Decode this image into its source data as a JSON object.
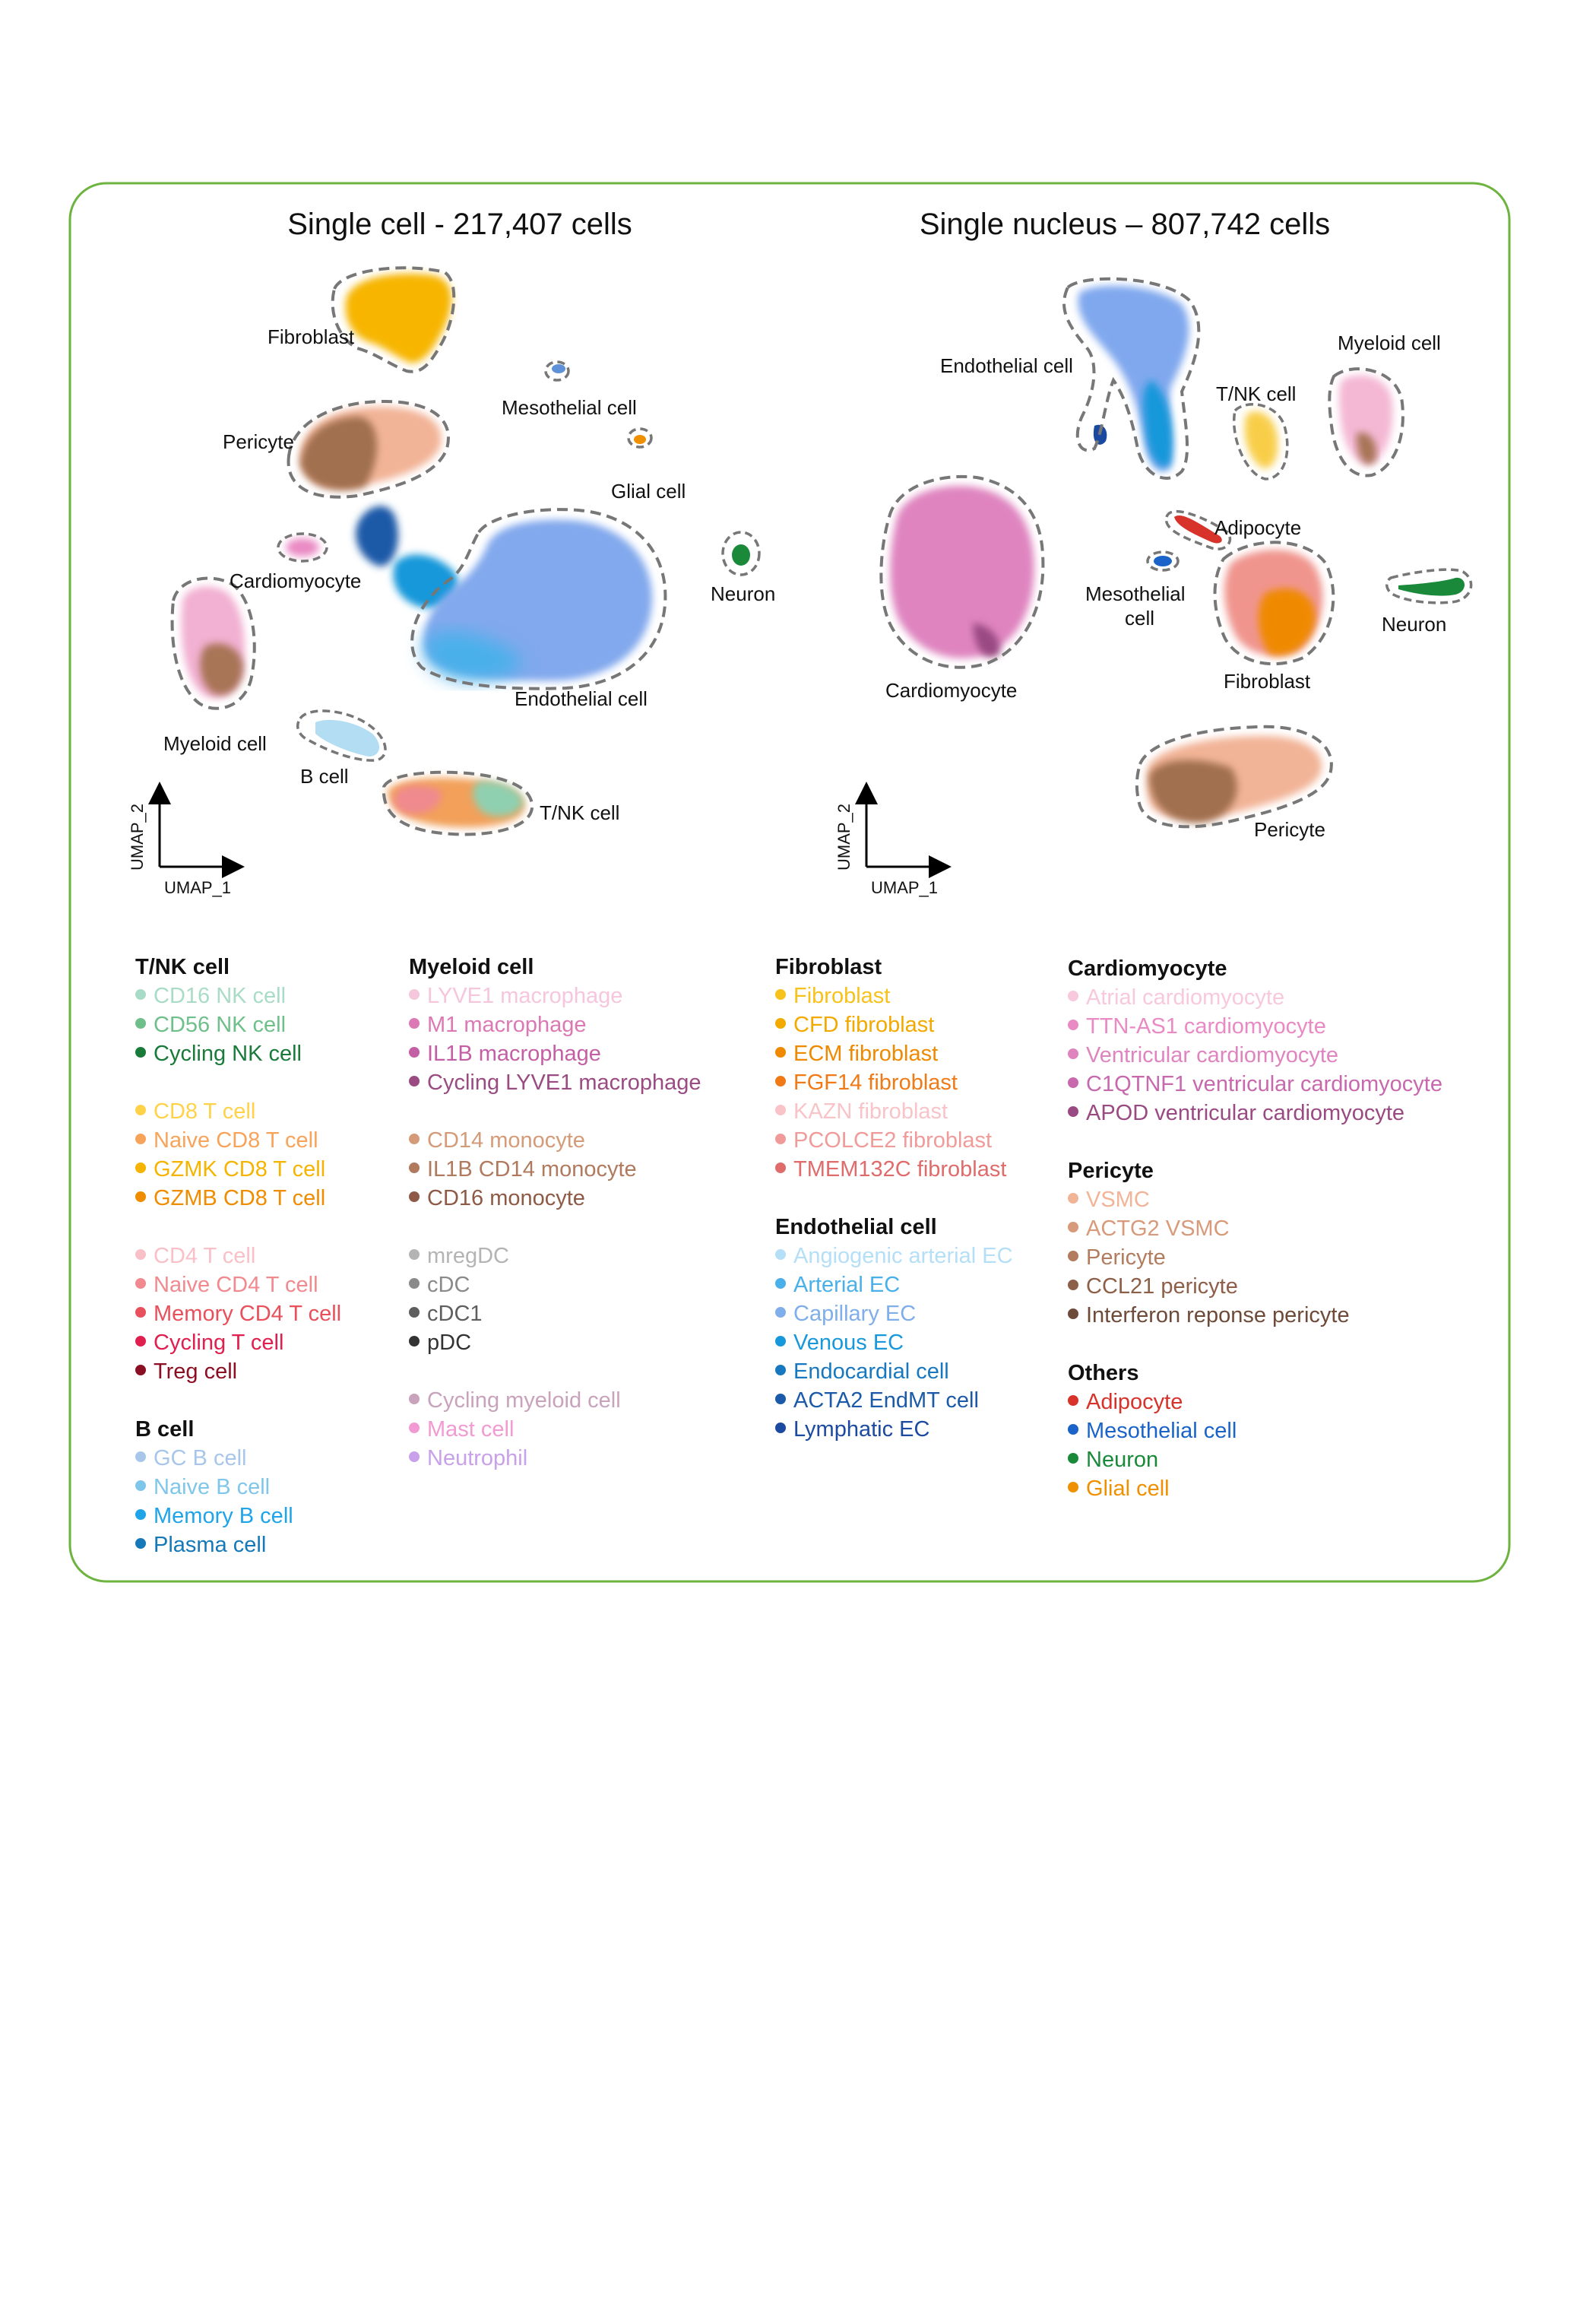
{
  "palette": {
    "frame": "#6db33f",
    "outline": "#777777",
    "text": "#111111"
  },
  "panels": [
    {
      "id": "single-cell",
      "title": "Single cell - 217,407 cells",
      "axes": {
        "x": "UMAP_1",
        "y": "UMAP_2"
      },
      "labels": [
        "Fibroblast",
        "Mesothelial cell",
        "Glial cell",
        "Pericyte",
        "Neuron",
        "Cardiomyocyte",
        "Endothelial cell",
        "Myeloid cell",
        "B cell",
        "T/NK cell"
      ]
    },
    {
      "id": "single-nucleus",
      "title": "Single nucleus – 807,742 cells",
      "axes": {
        "x": "UMAP_1",
        "y": "UMAP_2"
      },
      "labels": [
        "Endothelial cell",
        "Myeloid cell",
        "T/NK cell",
        "Adipocyte",
        "Mesothelial",
        "cell",
        "Neuron",
        "Cardiomyocyte",
        "Fibroblast",
        "Pericyte"
      ]
    }
  ],
  "legend": {
    "col1": [
      {
        "title": "T/NK cell",
        "subgroups": [
          [
            {
              "label": "CD16 NK cell",
              "color": "#a9dcc6"
            },
            {
              "label": "CD56 NK cell",
              "color": "#6fbf8a"
            },
            {
              "label": "Cycling NK cell",
              "color": "#1a7a3a"
            }
          ],
          [
            {
              "label": "CD8 T cell",
              "color": "#ffd24a"
            },
            {
              "label": "Naive CD8 T cell",
              "color": "#f7a45a"
            },
            {
              "label": "GZMK CD8 T cell",
              "color": "#f5b400"
            },
            {
              "label": "GZMB CD8 T cell",
              "color": "#ef8c00"
            }
          ],
          [
            {
              "label": "CD4 T cell",
              "color": "#f9c0c8"
            },
            {
              "label": "Naive CD4 T cell",
              "color": "#f08a8f"
            },
            {
              "label": "Memory CD4 T cell",
              "color": "#e8505b"
            },
            {
              "label": "Cycling T cell",
              "color": "#e01f4f"
            },
            {
              "label": "Treg cell",
              "color": "#8b0f22"
            }
          ]
        ]
      },
      {
        "title": "B cell",
        "subgroups": [
          [
            {
              "label": "GC B cell",
              "color": "#a8c6ea"
            },
            {
              "label": "Naive B cell",
              "color": "#7fc7ea"
            },
            {
              "label": "Memory B cell",
              "color": "#20a4e8"
            },
            {
              "label": "Plasma cell",
              "color": "#1578b8"
            }
          ]
        ]
      }
    ],
    "col2": [
      {
        "title": "Myeloid cell",
        "subgroups": [
          [
            {
              "label": "LYVE1 macrophage",
              "color": "#f6c6dc"
            },
            {
              "label": "M1 macrophage",
              "color": "#dc79b4"
            },
            {
              "label": "IL1B macrophage",
              "color": "#c45fa6"
            },
            {
              "label": "Cycling LYVE1 macrophage",
              "color": "#994b82"
            }
          ],
          [
            {
              "label": "CD14 monocyte",
              "color": "#d49b78"
            },
            {
              "label": "IL1B CD14 monocyte",
              "color": "#b07a5e"
            },
            {
              "label": "CD16 monocyte",
              "color": "#8e5a45"
            }
          ],
          [
            {
              "label": "mregDC",
              "color": "#b4b4b4"
            },
            {
              "label": "cDC",
              "color": "#8a8a8a"
            },
            {
              "label": "cDC1",
              "color": "#5e5e5e"
            },
            {
              "label": "pDC",
              "color": "#333333"
            }
          ],
          [
            {
              "label": "Cycling myeloid cell",
              "color": "#c9a2bc"
            },
            {
              "label": "Mast cell",
              "color": "#f29bd2"
            },
            {
              "label": "Neutrophil",
              "color": "#c9a0ea"
            }
          ]
        ]
      }
    ],
    "col3": [
      {
        "title": "Fibroblast",
        "subgroups": [
          [
            {
              "label": "Fibroblast",
              "color": "#f7c21b"
            },
            {
              "label": "CFD fibroblast",
              "color": "#f2a900"
            },
            {
              "label": "ECM fibroblast",
              "color": "#ef8a00"
            },
            {
              "label": "FGF14 fibroblast",
              "color": "#f07a16"
            },
            {
              "label": "KAZN fibroblast",
              "color": "#f8c4c8"
            },
            {
              "label": "PCOLCE2 fibroblast",
              "color": "#f09a9a"
            },
            {
              "label": "TMEM132C fibroblast",
              "color": "#e06b6b"
            }
          ]
        ]
      },
      {
        "title": "Endothelial cell",
        "subgroups": [
          [
            {
              "label": "Angiogenic arterial EC",
              "color": "#b4dff6"
            },
            {
              "label": "Arterial EC",
              "color": "#4ab0ea"
            },
            {
              "label": "Capillary EC",
              "color": "#7faeea"
            },
            {
              "label": "Venous EC",
              "color": "#1798da"
            },
            {
              "label": "Endocardial cell",
              "color": "#1878bf"
            },
            {
              "label": "ACTA2 EndMT cell",
              "color": "#1a5aa8"
            },
            {
              "label": "Lymphatic EC",
              "color": "#1c4aa0"
            }
          ]
        ]
      }
    ],
    "col4": [
      {
        "title": "Cardiomyocyte",
        "subgroups": [
          [
            {
              "label": "Atrial cardiomyocyte",
              "color": "#f8c8dc"
            },
            {
              "label": "TTN-AS1 cardiomyocyte",
              "color": "#ea8ac4"
            },
            {
              "label": "Ventricular cardiomyocyte",
              "color": "#df84bf"
            },
            {
              "label": "C1QTNF1 ventricular cardiomyocyte",
              "color": "#c868ae"
            },
            {
              "label": "APOD ventricular cardiomyocyte",
              "color": "#9a4a82"
            }
          ]
        ]
      },
      {
        "title": "Pericyte",
        "subgroups": [
          [
            {
              "label": "VSMC",
              "color": "#f2b497"
            },
            {
              "label": "ACTG2 VSMC",
              "color": "#d79a7a"
            },
            {
              "label": "Pericyte",
              "color": "#b27c5f"
            },
            {
              "label": "CCL21 pericyte",
              "color": "#8e5f48"
            },
            {
              "label": "Interferon reponse pericyte",
              "color": "#6e4a38"
            }
          ]
        ]
      },
      {
        "title": "Others",
        "subgroups": [
          [
            {
              "label": "Adipocyte",
              "color": "#d8332a"
            },
            {
              "label": "Mesothelial cell",
              "color": "#1a63c8"
            },
            {
              "label": "Neuron",
              "color": "#1a8a3a"
            },
            {
              "label": "Glial cell",
              "color": "#ef9000"
            }
          ]
        ]
      }
    ]
  }
}
